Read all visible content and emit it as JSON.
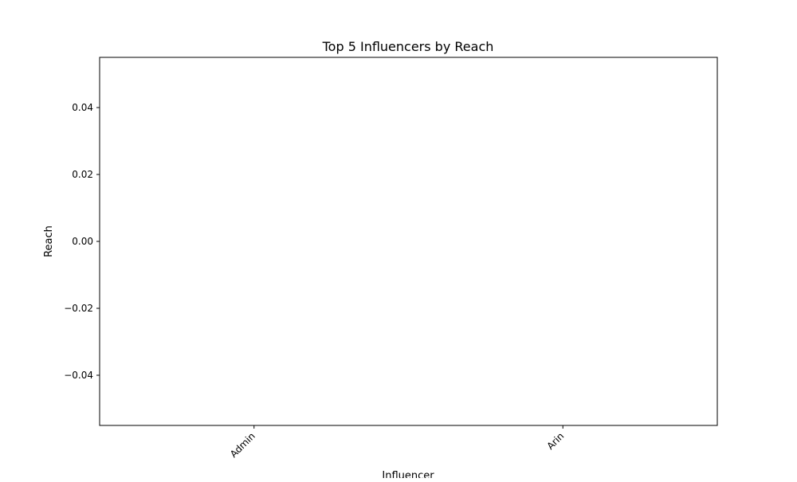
{
  "chart_data": {
    "type": "bar",
    "title": "Top 5 Influencers by Reach",
    "xlabel": "Influencer",
    "ylabel": "Reach",
    "categories": [
      "Admin",
      "Arin"
    ],
    "series": [
      {
        "values": [
          0,
          0
        ]
      }
    ],
    "ylim": [
      -0.055,
      0.055
    ],
    "yticks": [
      0.04,
      0.02,
      0.0,
      -0.02,
      -0.04
    ],
    "ytick_labels": [
      "0.04",
      "0.02",
      "0.00",
      "−0.02",
      "−0.04"
    ],
    "grid": false,
    "legend": "none",
    "bar_color": "#1f77b4"
  }
}
